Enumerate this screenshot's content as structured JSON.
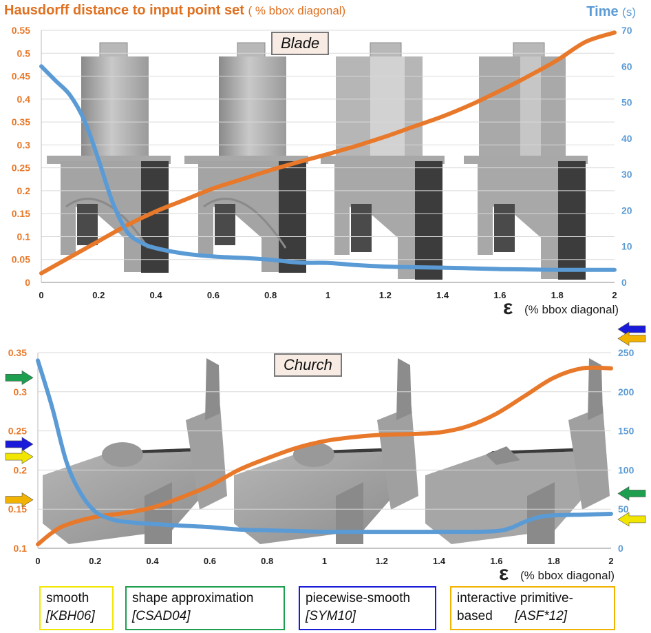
{
  "header": {
    "left_title": "Hausdorff distance to input point set",
    "left_title_unit": "( % bbox diagonal)",
    "right_title": "Time",
    "right_title_unit": "(s)"
  },
  "colors": {
    "hausdorff": "#e8782a",
    "time": "#5b9bd5",
    "smooth": "#f2e600",
    "shape_approximation": "#1e9e4f",
    "piecewise_smooth": "#1a1adb",
    "interactive_primitive_based": "#f2b200"
  },
  "x_axis_label": {
    "symbol": "ε",
    "unit": "(% bbox diagonal)"
  },
  "chart_data": [
    {
      "type": "line",
      "title": "Blade",
      "x_ticks": [
        "0",
        "0.2",
        "0.4",
        "0.6",
        "0.8",
        "1",
        "1.2",
        "1.4",
        "1.6",
        "1.8",
        "2"
      ],
      "y_ticks": [
        "0",
        "0.05",
        "0.1",
        "0.15",
        "0.2",
        "0.25",
        "0.3",
        "0.35",
        "0.4",
        "0.45",
        "0.5",
        "0.55"
      ],
      "y2_ticks": [
        "0",
        "10",
        "20",
        "30",
        "40",
        "50",
        "60",
        "70"
      ],
      "xlim": [
        0,
        2
      ],
      "ylim": [
        0,
        0.55
      ],
      "y2lim": [
        0,
        70
      ],
      "grid": true,
      "series": [
        {
          "axis": "left",
          "color": "#e8782a",
          "x": [
            0,
            0.1,
            0.2,
            0.3,
            0.4,
            0.5,
            0.6,
            0.7,
            0.8,
            0.9,
            1.0,
            1.1,
            1.2,
            1.3,
            1.4,
            1.5,
            1.6,
            1.7,
            1.8,
            1.9,
            2.0
          ],
          "values": [
            0.02,
            0.055,
            0.09,
            0.125,
            0.155,
            0.18,
            0.205,
            0.225,
            0.245,
            0.263,
            0.28,
            0.298,
            0.318,
            0.34,
            0.362,
            0.388,
            0.418,
            0.45,
            0.485,
            0.525,
            0.545
          ]
        },
        {
          "axis": "right",
          "color": "#5b9bd5",
          "x": [
            0,
            0.05,
            0.1,
            0.15,
            0.2,
            0.25,
            0.3,
            0.35,
            0.4,
            0.5,
            0.6,
            0.7,
            0.8,
            0.9,
            1.0,
            1.1,
            1.2,
            1.3,
            1.4,
            1.5,
            1.6,
            1.7,
            1.8,
            1.9,
            2.0
          ],
          "values": [
            60,
            56,
            52,
            45,
            34,
            22,
            14,
            11,
            9.5,
            8,
            7.2,
            6.8,
            6.3,
            5.5,
            5.4,
            4.8,
            4.4,
            4.2,
            4.1,
            3.9,
            3.7,
            3.6,
            3.5,
            3.5,
            3.5
          ]
        }
      ]
    },
    {
      "type": "line",
      "title": "Church",
      "x_ticks": [
        "0",
        "0.2",
        "0.4",
        "0.6",
        "0.8",
        "1",
        "1.2",
        "1.4",
        "1.6",
        "1.8",
        "2"
      ],
      "y_ticks": [
        "0.1",
        "0.15",
        "0.2",
        "0.25",
        "0.3",
        "0.35"
      ],
      "y2_ticks": [
        "0",
        "50",
        "100",
        "150",
        "200",
        "250"
      ],
      "xlim": [
        0,
        2
      ],
      "ylim": [
        0.1,
        0.35
      ],
      "y2lim": [
        0,
        250
      ],
      "grid": true,
      "series": [
        {
          "axis": "left",
          "color": "#e8782a",
          "x": [
            0,
            0.05,
            0.1,
            0.2,
            0.3,
            0.4,
            0.5,
            0.6,
            0.7,
            0.8,
            0.9,
            1.0,
            1.1,
            1.2,
            1.3,
            1.4,
            1.5,
            1.6,
            1.7,
            1.8,
            1.9,
            2.0
          ],
          "values": [
            0.105,
            0.12,
            0.13,
            0.14,
            0.145,
            0.152,
            0.165,
            0.18,
            0.2,
            0.215,
            0.228,
            0.237,
            0.242,
            0.245,
            0.246,
            0.248,
            0.256,
            0.272,
            0.295,
            0.318,
            0.33,
            0.33
          ]
        },
        {
          "axis": "right",
          "color": "#5b9bd5",
          "x": [
            0,
            0.05,
            0.1,
            0.15,
            0.2,
            0.25,
            0.3,
            0.4,
            0.5,
            0.6,
            0.7,
            0.8,
            0.9,
            1.0,
            1.1,
            1.2,
            1.3,
            1.4,
            1.5,
            1.6,
            1.65,
            1.7,
            1.75,
            1.8,
            1.9,
            2.0
          ],
          "values": [
            240,
            180,
            110,
            70,
            47,
            38,
            34,
            31,
            29,
            27,
            24,
            23,
            22,
            21,
            21,
            21,
            21,
            21,
            21,
            22,
            26,
            34,
            40,
            42,
            43,
            44
          ]
        }
      ]
    }
  ],
  "panel_titles": {
    "blade": "Blade",
    "church": "Church"
  },
  "legend": [
    {
      "name": "smooth",
      "citation": "[KBH06]",
      "color": "#f2e600"
    },
    {
      "name": "shape approximation",
      "citation": "[CSAD04]",
      "color": "#1e9e4f"
    },
    {
      "name": "piecewise-smooth",
      "citation": "[SYM10]",
      "color": "#1a1adb"
    },
    {
      "name": "interactive primitive-based",
      "citation": "[ASF*12]",
      "color": "#f2b200"
    }
  ],
  "arrow_markers": {
    "left_axis": [
      {
        "method": "shape approximation",
        "value": 0.318,
        "color": "#1e9e4f"
      },
      {
        "method": "piecewise-smooth",
        "value": 0.233,
        "color": "#1a1adb"
      },
      {
        "method": "smooth",
        "value": 0.217,
        "color": "#f2e600"
      },
      {
        "method": "interactive primitive-based",
        "value": 0.162,
        "color": "#f2b200"
      }
    ],
    "right_axis": [
      {
        "method": "piecewise-smooth",
        "value": 280,
        "color": "#1a1adb"
      },
      {
        "method": "interactive primitive-based",
        "value": 268,
        "color": "#f2b200"
      },
      {
        "method": "shape approximation",
        "value": 70,
        "color": "#1e9e4f"
      },
      {
        "method": "smooth",
        "value": 37,
        "color": "#f2e600"
      }
    ]
  }
}
